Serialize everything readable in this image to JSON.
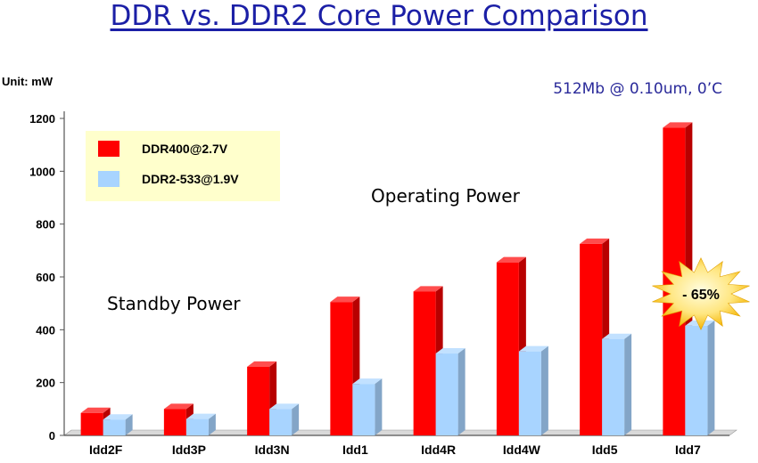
{
  "header": {
    "title": "DDR vs. DDR2 Core Power Comparison",
    "unit_label": "Unit: mW",
    "subtitle": "512Mb @ 0.10um, 0’C"
  },
  "chart_data": {
    "type": "bar",
    "categories": [
      "Idd2F",
      "Idd3P",
      "Idd3N",
      "Idd1",
      "Idd4R",
      "Idd4W",
      "Idd5",
      "Idd7"
    ],
    "series": [
      {
        "name": "DDR400@2.7V",
        "values": [
          85,
          100,
          260,
          505,
          545,
          655,
          725,
          1165
        ],
        "color": "#ff0000"
      },
      {
        "name": "DDR2-533@1.9V",
        "values": [
          60,
          62,
          100,
          195,
          310,
          318,
          365,
          415
        ],
        "color": "#a8d4ff"
      }
    ],
    "yticks": [
      0,
      200,
      400,
      600,
      800,
      1000,
      1200
    ],
    "ylim": [
      0,
      1200
    ],
    "legend_position": "top-left",
    "grid": false,
    "annotations": [
      {
        "text": "Standby Power"
      },
      {
        "text": "Operating Power"
      },
      {
        "text": "- 65%"
      }
    ]
  }
}
